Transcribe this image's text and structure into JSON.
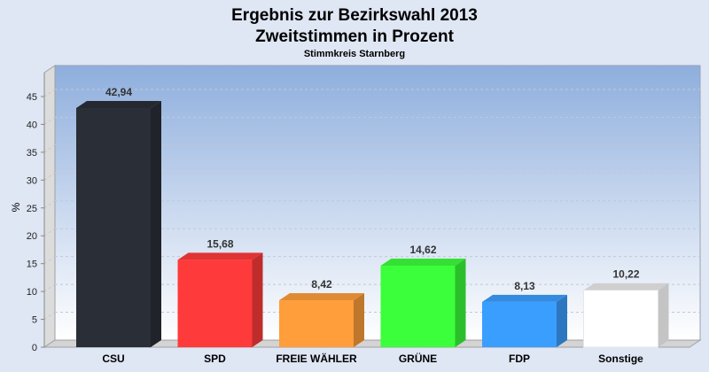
{
  "chart_data": {
    "type": "bar",
    "title": "Ergebnis zur Bezirkswahl 2013",
    "subtitle": "Zweitstimmen in Prozent",
    "subsubtitle": "Stimmkreis Starnberg",
    "xlabel": "",
    "ylabel": "%",
    "ylim": [
      0,
      45
    ],
    "yticks": [
      "0",
      "5",
      "10",
      "15",
      "20",
      "25",
      "30",
      "35",
      "40",
      "45"
    ],
    "categories": [
      "CSU",
      "SPD",
      "FREIE WÄHLER",
      "GRÜNE",
      "FDP",
      "Sonstige"
    ],
    "values": [
      42.94,
      15.68,
      8.42,
      14.62,
      8.13,
      10.22
    ],
    "labels": [
      "42,94",
      "15,68",
      "8,42",
      "14,62",
      "8,13",
      "10,22"
    ],
    "colors": [
      "#2a2e36",
      "#ff3a3a",
      "#ff9e3a",
      "#3aff3a",
      "#3a9eff",
      "#ffffff"
    ],
    "grid": true,
    "legend": "none"
  }
}
